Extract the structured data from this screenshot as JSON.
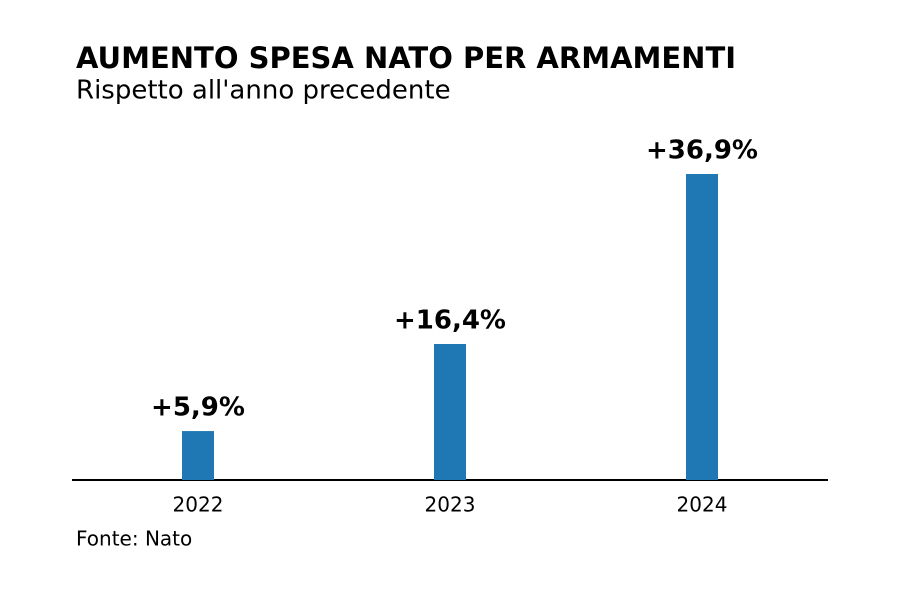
{
  "chart_data": {
    "type": "bar",
    "title": "AUMENTO SPESA NATO PER ARMAMENTI",
    "subtitle": "Rispetto all'anno precedente",
    "categories": [
      "2022",
      "2023",
      "2024"
    ],
    "values": [
      5.9,
      16.4,
      36.9
    ],
    "value_labels": [
      "+5,9%",
      "+16,4%",
      "+36,9%"
    ],
    "color": "#1f77b4",
    "source": "Fonte: Nato"
  }
}
